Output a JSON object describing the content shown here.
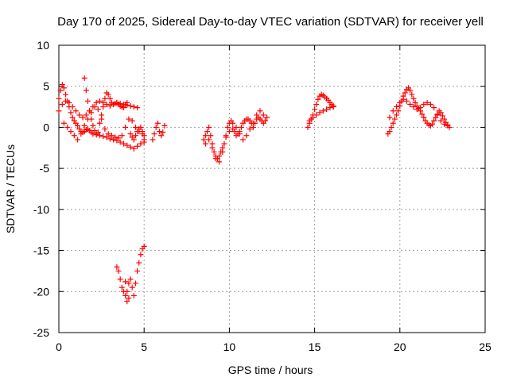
{
  "chart_data": {
    "type": "scatter",
    "title": "Day 170 of 2025, Sidereal Day-to-day VTEC variation (SDTVAR) for receiver yell",
    "xlabel": "GPS time / hours",
    "ylabel": "SDTVAR / TECUs",
    "xlim": [
      0,
      25
    ],
    "ylim": [
      -25,
      10
    ],
    "x_ticks": [
      "0",
      "5",
      "10",
      "15",
      "20",
      "25"
    ],
    "x_tick_values": [
      0,
      5,
      10,
      15,
      20,
      25
    ],
    "y_ticks": [
      "10",
      "5",
      "0",
      "-5",
      "-10",
      "-15",
      "-20",
      "-25"
    ],
    "y_tick_values": [
      10,
      5,
      0,
      -5,
      -10,
      -15,
      -20,
      -25
    ],
    "grid": true,
    "marker": "+",
    "color": "#ff0000",
    "series": [
      {
        "name": "SDTVAR",
        "x": [
          0.0,
          0.1,
          0.2,
          0.3,
          0.4,
          0.5,
          0.6,
          0.7,
          0.8,
          0.9,
          1.0,
          1.1,
          1.2,
          1.3,
          1.4,
          1.5,
          1.6,
          1.7,
          1.8,
          1.9,
          2.0,
          2.2,
          2.4,
          2.6,
          2.8,
          3.0,
          3.2,
          3.4,
          3.6,
          3.8,
          4.0,
          4.2,
          4.4,
          4.6,
          4.8,
          5.0,
          0.0,
          0.2,
          0.4,
          0.6,
          0.8,
          1.0,
          1.2,
          1.4,
          1.6,
          1.8,
          2.0,
          2.2,
          2.4,
          2.6,
          2.8,
          3.0,
          3.2,
          3.4,
          3.6,
          3.8,
          4.0,
          4.2,
          4.4,
          4.6,
          0.3,
          0.5,
          0.7,
          0.9,
          1.1,
          1.3,
          1.5,
          1.7,
          1.9,
          2.1,
          2.3,
          2.5,
          2.7,
          2.9,
          3.1,
          3.3,
          3.5,
          3.7,
          3.9,
          4.1,
          4.3,
          4.5,
          4.7,
          4.9,
          1.5,
          1.6,
          1.7,
          1.8,
          1.9,
          2.0,
          2.1,
          2.2,
          2.3,
          2.4,
          2.5,
          2.6,
          2.7,
          2.8,
          2.9,
          3.0,
          3.1,
          3.2,
          3.3,
          3.4,
          3.5,
          3.6,
          3.7,
          3.8,
          3.9,
          4.0,
          4.2,
          4.3,
          4.4,
          4.5,
          4.6,
          4.7,
          4.8,
          4.9,
          5.0,
          5.0,
          5.5,
          5.6,
          5.7,
          5.8,
          5.9,
          6.0,
          6.1,
          6.2,
          3.4,
          3.5,
          3.6,
          3.7,
          3.8,
          3.9,
          4.0,
          4.1,
          4.2,
          4.3,
          4.4,
          4.5,
          4.6,
          4.7,
          4.8,
          4.9,
          5.0,
          4.0,
          4.1,
          3.9,
          8.5,
          8.6,
          8.7,
          8.8,
          8.9,
          9.0,
          9.1,
          9.2,
          9.3,
          9.4,
          9.5,
          9.6,
          9.7,
          9.8,
          9.9,
          10.0,
          10.1,
          10.2,
          10.3,
          10.4,
          10.5,
          10.6,
          10.7,
          10.8,
          10.9,
          11.0,
          11.1,
          11.2,
          11.3,
          11.4,
          11.5,
          11.6,
          11.7,
          11.8,
          11.9,
          12.0,
          12.1,
          12.2,
          8.6,
          8.8,
          9.0,
          9.2,
          9.4,
          9.6,
          9.8,
          10.0,
          10.2,
          10.4,
          10.6,
          10.8,
          11.0,
          11.2,
          11.4,
          11.6,
          11.8,
          12.0,
          14.6,
          14.7,
          14.8,
          14.9,
          15.0,
          15.1,
          15.2,
          15.3,
          15.4,
          15.5,
          15.6,
          15.7,
          15.8,
          15.9,
          16.0,
          16.1,
          14.7,
          14.9,
          15.1,
          15.3,
          15.5,
          15.7,
          15.9,
          16.1,
          19.3,
          19.4,
          19.5,
          19.6,
          19.7,
          19.8,
          19.9,
          20.0,
          20.1,
          20.2,
          20.3,
          20.4,
          20.5,
          20.6,
          20.7,
          20.8,
          20.9,
          21.0,
          21.1,
          21.2,
          21.3,
          21.4,
          21.5,
          21.6,
          21.7,
          21.8,
          21.9,
          22.0,
          22.1,
          22.2,
          22.3,
          22.4,
          22.5,
          22.6,
          22.7,
          22.8,
          22.9,
          19.4,
          19.6,
          19.8,
          20.0,
          20.2,
          20.4,
          20.6,
          20.8,
          21.0,
          21.2,
          21.4,
          21.6,
          21.8,
          22.0,
          22.2,
          22.4,
          22.6,
          22.8
        ],
        "y": [
          3.5,
          4.5,
          5.2,
          4.8,
          4.0,
          3.2,
          2.5,
          1.8,
          1.2,
          0.8,
          0.5,
          0.2,
          -0.2,
          -0.5,
          -0.6,
          -0.5,
          -0.3,
          -0.2,
          -0.4,
          -0.6,
          -0.8,
          -0.9,
          -1.0,
          -1.1,
          -1.2,
          -1.4,
          -1.5,
          -1.6,
          -1.8,
          -2.0,
          -2.2,
          -2.4,
          -2.6,
          -2.3,
          -2.0,
          -1.5,
          2.0,
          2.8,
          3.2,
          3.0,
          2.5,
          2.0,
          1.5,
          1.2,
          1.5,
          2.0,
          2.5,
          3.0,
          3.2,
          3.0,
          2.8,
          2.6,
          2.8,
          3.0,
          2.9,
          2.8,
          2.7,
          2.6,
          2.5,
          2.4,
          0.5,
          0.0,
          -0.5,
          -1.0,
          -1.5,
          -0.8,
          0.2,
          1.0,
          1.8,
          2.5,
          2.2,
          1.0,
          -0.2,
          -0.8,
          -1.0,
          -1.2,
          -1.3,
          -1.0,
          0.0,
          1.0,
          0.8,
          0.0,
          -0.5,
          -0.8,
          6.0,
          4.5,
          3.2,
          2.0,
          1.0,
          0.2,
          -0.4,
          -0.8,
          -0.6,
          0.5,
          1.5,
          2.5,
          3.5,
          4.2,
          4.0,
          3.5,
          3.0,
          2.8,
          2.9,
          3.0,
          2.8,
          2.6,
          2.5,
          2.4,
          2.8,
          3.0,
          -0.8,
          -1.2,
          -1.5,
          -1.0,
          -0.5,
          -0.2,
          0.0,
          -0.5,
          -1.0,
          -1.8,
          -1.5,
          -0.8,
          0.0,
          0.5,
          -0.5,
          -1.0,
          -0.6,
          0.2,
          -17.0,
          -17.5,
          -18.5,
          -19.5,
          -20.0,
          -20.5,
          -20.0,
          -19.0,
          -18.5,
          -19.5,
          -20.5,
          -19.0,
          -17.5,
          -16.5,
          -15.5,
          -14.8,
          -14.5,
          -21.2,
          -20.8,
          -18.8,
          -1.5,
          -1.0,
          -0.5,
          0.0,
          -1.0,
          -2.0,
          -3.0,
          -3.5,
          -3.8,
          -3.5,
          -3.0,
          -2.5,
          -2.0,
          -1.0,
          0.0,
          0.5,
          0.8,
          0.5,
          -0.5,
          -1.0,
          -0.8,
          -0.5,
          0.0,
          0.5,
          0.8,
          1.0,
          1.0,
          0.8,
          0.5,
          0.0,
          0.5,
          1.0,
          1.2,
          1.0,
          0.8,
          0.5,
          0.8,
          1.2,
          -2.0,
          -1.5,
          -2.5,
          -3.8,
          -4.2,
          -3.0,
          -1.2,
          -0.5,
          -0.2,
          0.0,
          -0.8,
          -1.5,
          -1.0,
          -0.2,
          0.5,
          1.5,
          2.0,
          1.5,
          0.0,
          0.5,
          1.0,
          1.5,
          2.2,
          2.8,
          3.4,
          3.8,
          4.0,
          3.9,
          3.7,
          3.5,
          3.3,
          3.0,
          2.8,
          2.6,
          0.8,
          1.2,
          1.5,
          1.8,
          2.0,
          2.2,
          2.4,
          2.5,
          -0.8,
          -0.5,
          0.0,
          0.5,
          1.0,
          1.5,
          2.0,
          2.6,
          3.2,
          3.8,
          4.2,
          4.6,
          4.8,
          4.5,
          4.0,
          3.5,
          3.0,
          2.6,
          2.3,
          2.0,
          1.6,
          1.2,
          0.8,
          0.5,
          0.3,
          0.2,
          0.4,
          0.8,
          1.2,
          1.6,
          2.0,
          1.8,
          1.4,
          1.0,
          0.6,
          0.3,
          0.0,
          1.2,
          2.0,
          2.5,
          3.0,
          3.4,
          3.2,
          2.8,
          2.5,
          2.2,
          2.4,
          2.8,
          3.0,
          2.8,
          2.4,
          1.5,
          0.8,
          0.4,
          0.2
        ]
      }
    ]
  }
}
